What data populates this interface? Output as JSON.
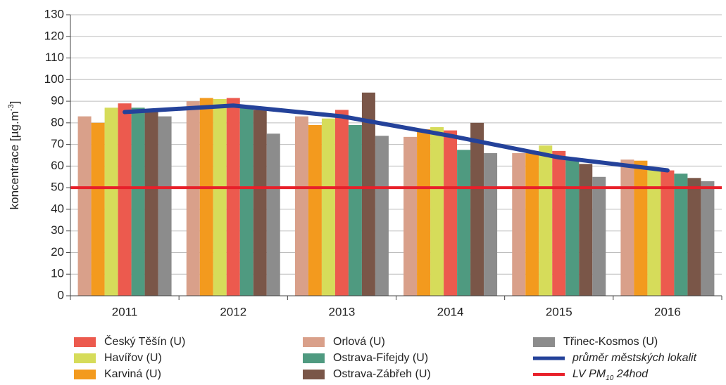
{
  "chart_data": {
    "type": "bar",
    "y_label_parts": [
      "koncentrace [µg.m",
      "-3",
      "]"
    ],
    "categories": [
      "2011",
      "2012",
      "2013",
      "2014",
      "2015",
      "2016"
    ],
    "ylim": [
      0,
      130
    ],
    "yticks": [
      0,
      10,
      20,
      30,
      40,
      50,
      60,
      70,
      80,
      90,
      100,
      110,
      120,
      130
    ],
    "grid": true,
    "series": [
      {
        "name": "Orlová (U)",
        "color": "#d9a08a",
        "values": [
          83,
          90,
          83,
          73.5,
          66,
          63
        ]
      },
      {
        "name": "Karviná (U)",
        "color": "#f39a1e",
        "values": [
          80,
          91.5,
          79,
          77,
          66,
          62.5
        ]
      },
      {
        "name": "Havířov (U)",
        "color": "#d6dc5a",
        "values": [
          87,
          91,
          82,
          78,
          69.5,
          59
        ]
      },
      {
        "name": "Český Těšín (U)",
        "color": "#ec5a4e",
        "values": [
          89,
          91.5,
          86,
          76.5,
          67,
          58
        ]
      },
      {
        "name": "Ostrava-Fifejdy (U)",
        "color": "#4f9a80",
        "values": [
          87,
          87,
          79,
          67.5,
          63,
          56.5
        ]
      },
      {
        "name": "Ostrava-Zábřeh (U)",
        "color": "#7a5648",
        "values": [
          85,
          86,
          94,
          80,
          61,
          54.5
        ]
      },
      {
        "name": "Třinec-Kosmos (U)",
        "color": "#8c8c8c",
        "values": [
          83,
          75,
          74,
          66,
          55,
          53
        ]
      }
    ],
    "line_series": {
      "name": "průměr městských lokalit",
      "color": "#24429a",
      "values": [
        85,
        88,
        83,
        74,
        64,
        58
      ]
    },
    "reference_line": {
      "name_parts": [
        "LV PM",
        "10",
        " 24hod"
      ],
      "color": "#e8202a",
      "value": 50
    }
  }
}
